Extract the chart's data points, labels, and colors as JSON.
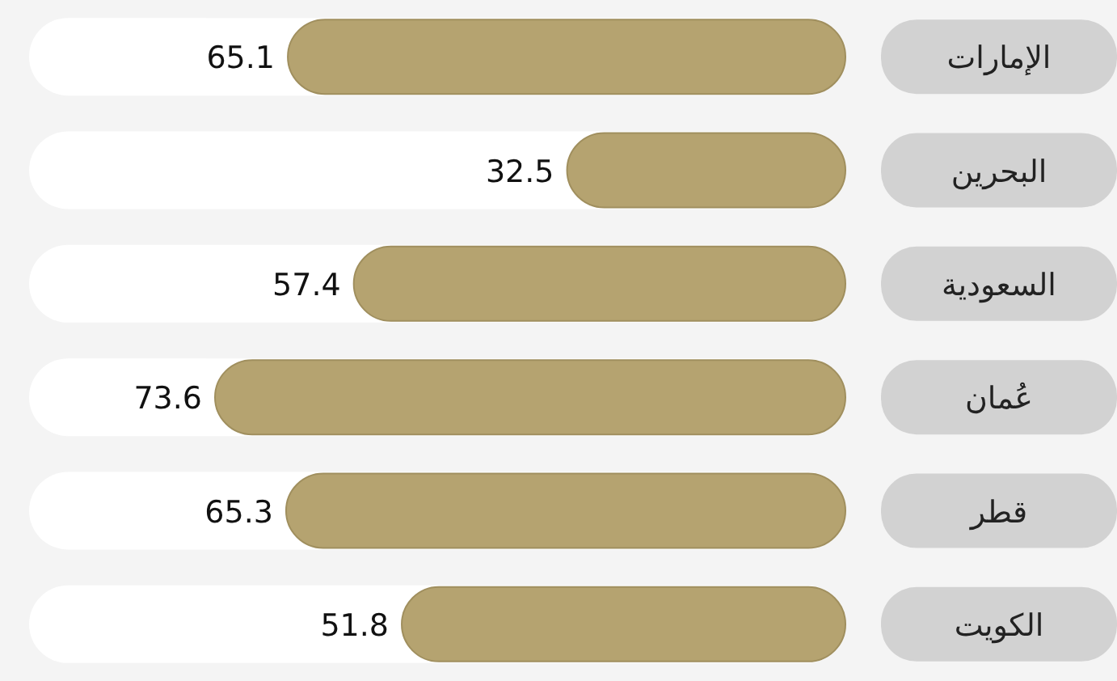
{
  "chart_data": {
    "type": "bar",
    "orientation": "horizontal",
    "categories": [
      "الإمارات",
      "البحرين",
      "السعودية",
      "عُمان",
      "قطر",
      "الكويت"
    ],
    "values": [
      65.1,
      32.5,
      57.4,
      73.6,
      65.3,
      51.8
    ],
    "color": "#b5a370",
    "tick_labels": "y",
    "data_labels": true
  }
}
